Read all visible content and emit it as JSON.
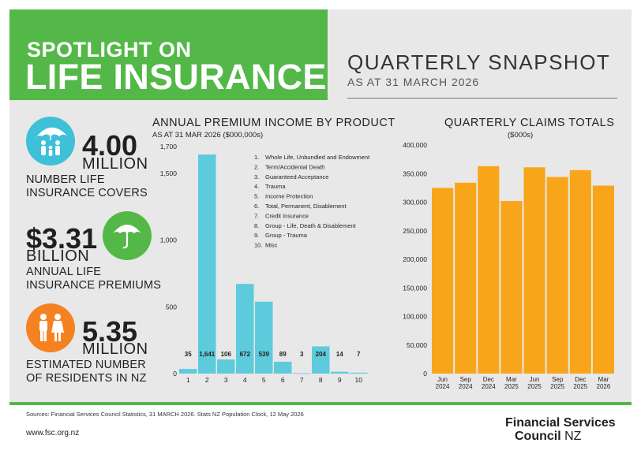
{
  "header": {
    "spotlight": "SPOTLIGHT ON",
    "topic": "LIFE INSURANCE",
    "snapshot_title": "QUARTERLY SNAPSHOT",
    "snapshot_date": "AS AT 31 MARCH 2026"
  },
  "stats": [
    {
      "value": "4.00",
      "unit": "MILLION",
      "line1": "NUMBER LIFE",
      "line2": "INSURANCE COVERS",
      "icon": "family-umbrella-icon",
      "color": "#3ec0d8"
    },
    {
      "value": "$3.31",
      "unit": "BILLION",
      "line1": "ANNUAL LIFE",
      "line2": "INSURANCE PREMIUMS",
      "icon": "umbrella-icon",
      "color": "#53b848"
    },
    {
      "value": "5.35",
      "unit": "MILLION",
      "line1": "ESTIMATED NUMBER",
      "line2": "OF RESIDENTS IN NZ",
      "icon": "people-icon",
      "color": "#f58220"
    }
  ],
  "chart_data": [
    {
      "type": "bar",
      "title": "ANNUAL PREMIUM INCOME BY PRODUCT",
      "subtitle": "AS AT 31 MAR 2026 ($000,000s)",
      "categories": [
        "1",
        "2",
        "3",
        "4",
        "5",
        "6",
        "7",
        "8",
        "9",
        "10"
      ],
      "values": [
        35,
        1641,
        106,
        672,
        539,
        89,
        3,
        204,
        14,
        7
      ],
      "data_labels": [
        "35",
        "1,641",
        "106",
        "672",
        "539",
        "89",
        "3",
        "204",
        "14",
        "7"
      ],
      "ylim": [
        0,
        1700
      ],
      "yticks": [
        0,
        500,
        1000,
        1500,
        1700
      ],
      "ytick_labels": [
        "0",
        "500",
        "1,000",
        "1,500",
        "1,700"
      ],
      "bar_color": "#5ecbdc",
      "legend_position": "top-right",
      "legend": [
        "Whole Life, Unbundled and Endowment",
        "Term/Accidental Death",
        "Guaranteed Acceptance",
        "Trauma",
        "Income Protection",
        "Total, Permanent, Disablement",
        "Credit Insurance",
        "Group - Life, Death & Disablement",
        "Group - Trauma",
        "Misc"
      ]
    },
    {
      "type": "bar",
      "title": "QUARTERLY CLAIMS TOTALS",
      "subtitle": "($000s)",
      "categories": [
        [
          "Jun",
          "2024"
        ],
        [
          "Sep",
          "2024"
        ],
        [
          "Dec",
          "2024"
        ],
        [
          "Mar",
          "2025"
        ],
        [
          "Jun",
          "2025"
        ],
        [
          "Sep",
          "2025"
        ],
        [
          "Dec",
          "2025"
        ],
        [
          "Mar",
          "2026"
        ]
      ],
      "values": [
        325000,
        334000,
        363000,
        302000,
        361000,
        344000,
        356000,
        329000
      ],
      "ylim": [
        0,
        400000
      ],
      "yticks": [
        0,
        50000,
        100000,
        150000,
        200000,
        250000,
        300000,
        350000,
        400000
      ],
      "ytick_labels": [
        "0",
        "50,000",
        "100,000",
        "150,000",
        "200,000",
        "250,000",
        "300,000",
        "350,000",
        "400,000"
      ],
      "bar_color": "#f9a51a",
      "grid": false
    }
  ],
  "footer": {
    "sources": "Sources: Financial Services Council Statistics, 31 MARCH 2026. Stats NZ Population Clock, 12 May 2026",
    "website": "www.fsc.org.nz",
    "logo_line1": "Financial Services",
    "logo_line2_bold": "Council",
    "logo_line2_rest": " NZ"
  }
}
